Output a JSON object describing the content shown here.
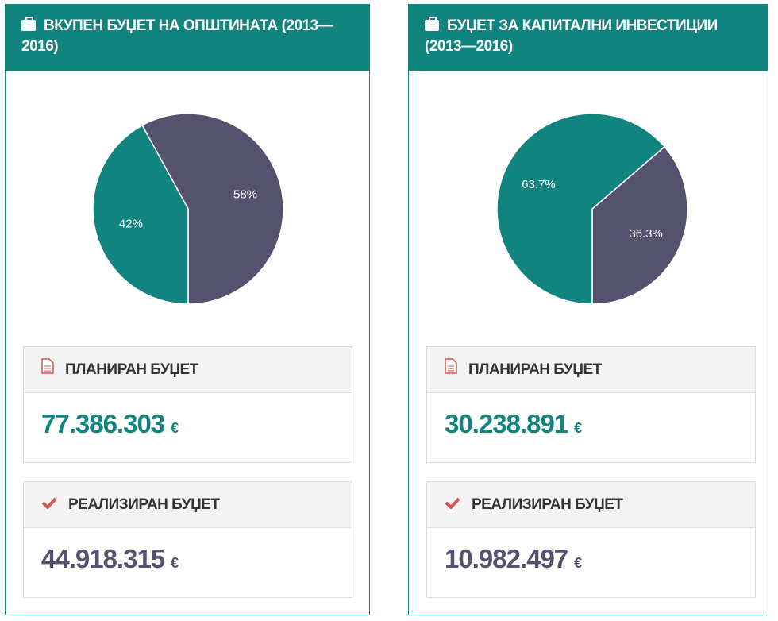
{
  "colors": {
    "teal": "#12847f",
    "purple": "#55526f",
    "red": "#d9534f"
  },
  "panels": [
    {
      "title": "ВКУПЕН БУЏЕТ НА ОПШТИНАТА (2013—2016)",
      "icon": "briefcase-icon",
      "planned_label": "ПЛАНИРАН БУЏЕТ",
      "planned_value": "77.386.303",
      "realized_label": "РЕАЛИЗИРАН БУЏЕТ",
      "realized_value": "44.918.315",
      "currency": "€"
    },
    {
      "title": "БУЏЕТ ЗА КАПИТАЛНИ ИНВЕСТИЦИИ (2013—2016)",
      "icon": "briefcase-icon",
      "planned_label": "ПЛАНИРАН БУЏЕТ",
      "planned_value": "30.238.891",
      "realized_label": "РЕАЛИЗИРАН БУЏЕТ",
      "realized_value": "10.982.497",
      "currency": "€"
    }
  ],
  "chart_data": [
    {
      "type": "pie",
      "slices": [
        {
          "label": "58%",
          "value": 58,
          "color": "#55526f"
        },
        {
          "label": "42%",
          "value": 42,
          "color": "#12847f"
        }
      ]
    },
    {
      "type": "pie",
      "slices": [
        {
          "label": "36.3%",
          "value": 36.3,
          "color": "#55526f"
        },
        {
          "label": "63.7%",
          "value": 63.7,
          "color": "#12847f"
        }
      ]
    }
  ]
}
